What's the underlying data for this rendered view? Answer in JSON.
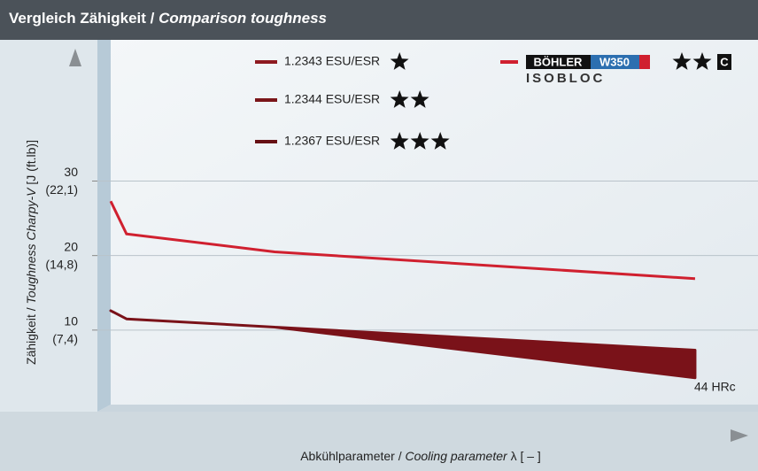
{
  "chart_data": {
    "type": "line",
    "title_de": "Vergleich Zähigkeit /",
    "title_en": "Comparison toughness",
    "ylabel_de": "Zähigkeit /",
    "ylabel_en": "Toughness Charpy-V",
    "ylabel_unit": "[J (ft.lb)]",
    "xlabel_de": "Abkühlparameter /",
    "xlabel_en": "Cooling parameter",
    "xlabel_unit": "λ [ – ]",
    "xlim": [
      0,
      100
    ],
    "ylim": [
      0,
      48
    ],
    "yticks": [
      10,
      20,
      30
    ],
    "ytick_labels_ftlb": [
      "(7,4)",
      "(14,8)",
      "(22,1)"
    ],
    "grid": true,
    "series": [
      {
        "name": "BÖHLER W350 ISOBLOC",
        "color": "#d0202f",
        "x": [
          0,
          2.5,
          25.9,
          92.3
        ],
        "values": [
          27.3,
          22.9,
          20.5,
          16.9
        ]
      }
    ],
    "band": {
      "color": "#7a1219",
      "x": [
        0,
        2.5,
        25.9,
        92.3
      ],
      "high": [
        12.6,
        11.5,
        10.4,
        7.3
      ],
      "low": [
        12.6,
        11.5,
        10.4,
        3.6
      ]
    },
    "legend": [
      {
        "name": "1.2343 ESU/ESR",
        "color": "#8e1a20",
        "stars": 1
      },
      {
        "name": "1.2344 ESU/ESR",
        "color": "#7a1519",
        "stars": 2
      },
      {
        "name": "1.2367 ESU/ESR",
        "color": "#661014",
        "stars": 3
      }
    ],
    "w350_legend": {
      "brand": "BÖHLER",
      "grade": "W350",
      "sub": "ISOBLOC",
      "stars": 2,
      "badge": "C",
      "color": "#d0202f"
    },
    "annotation": "44 HRc"
  }
}
